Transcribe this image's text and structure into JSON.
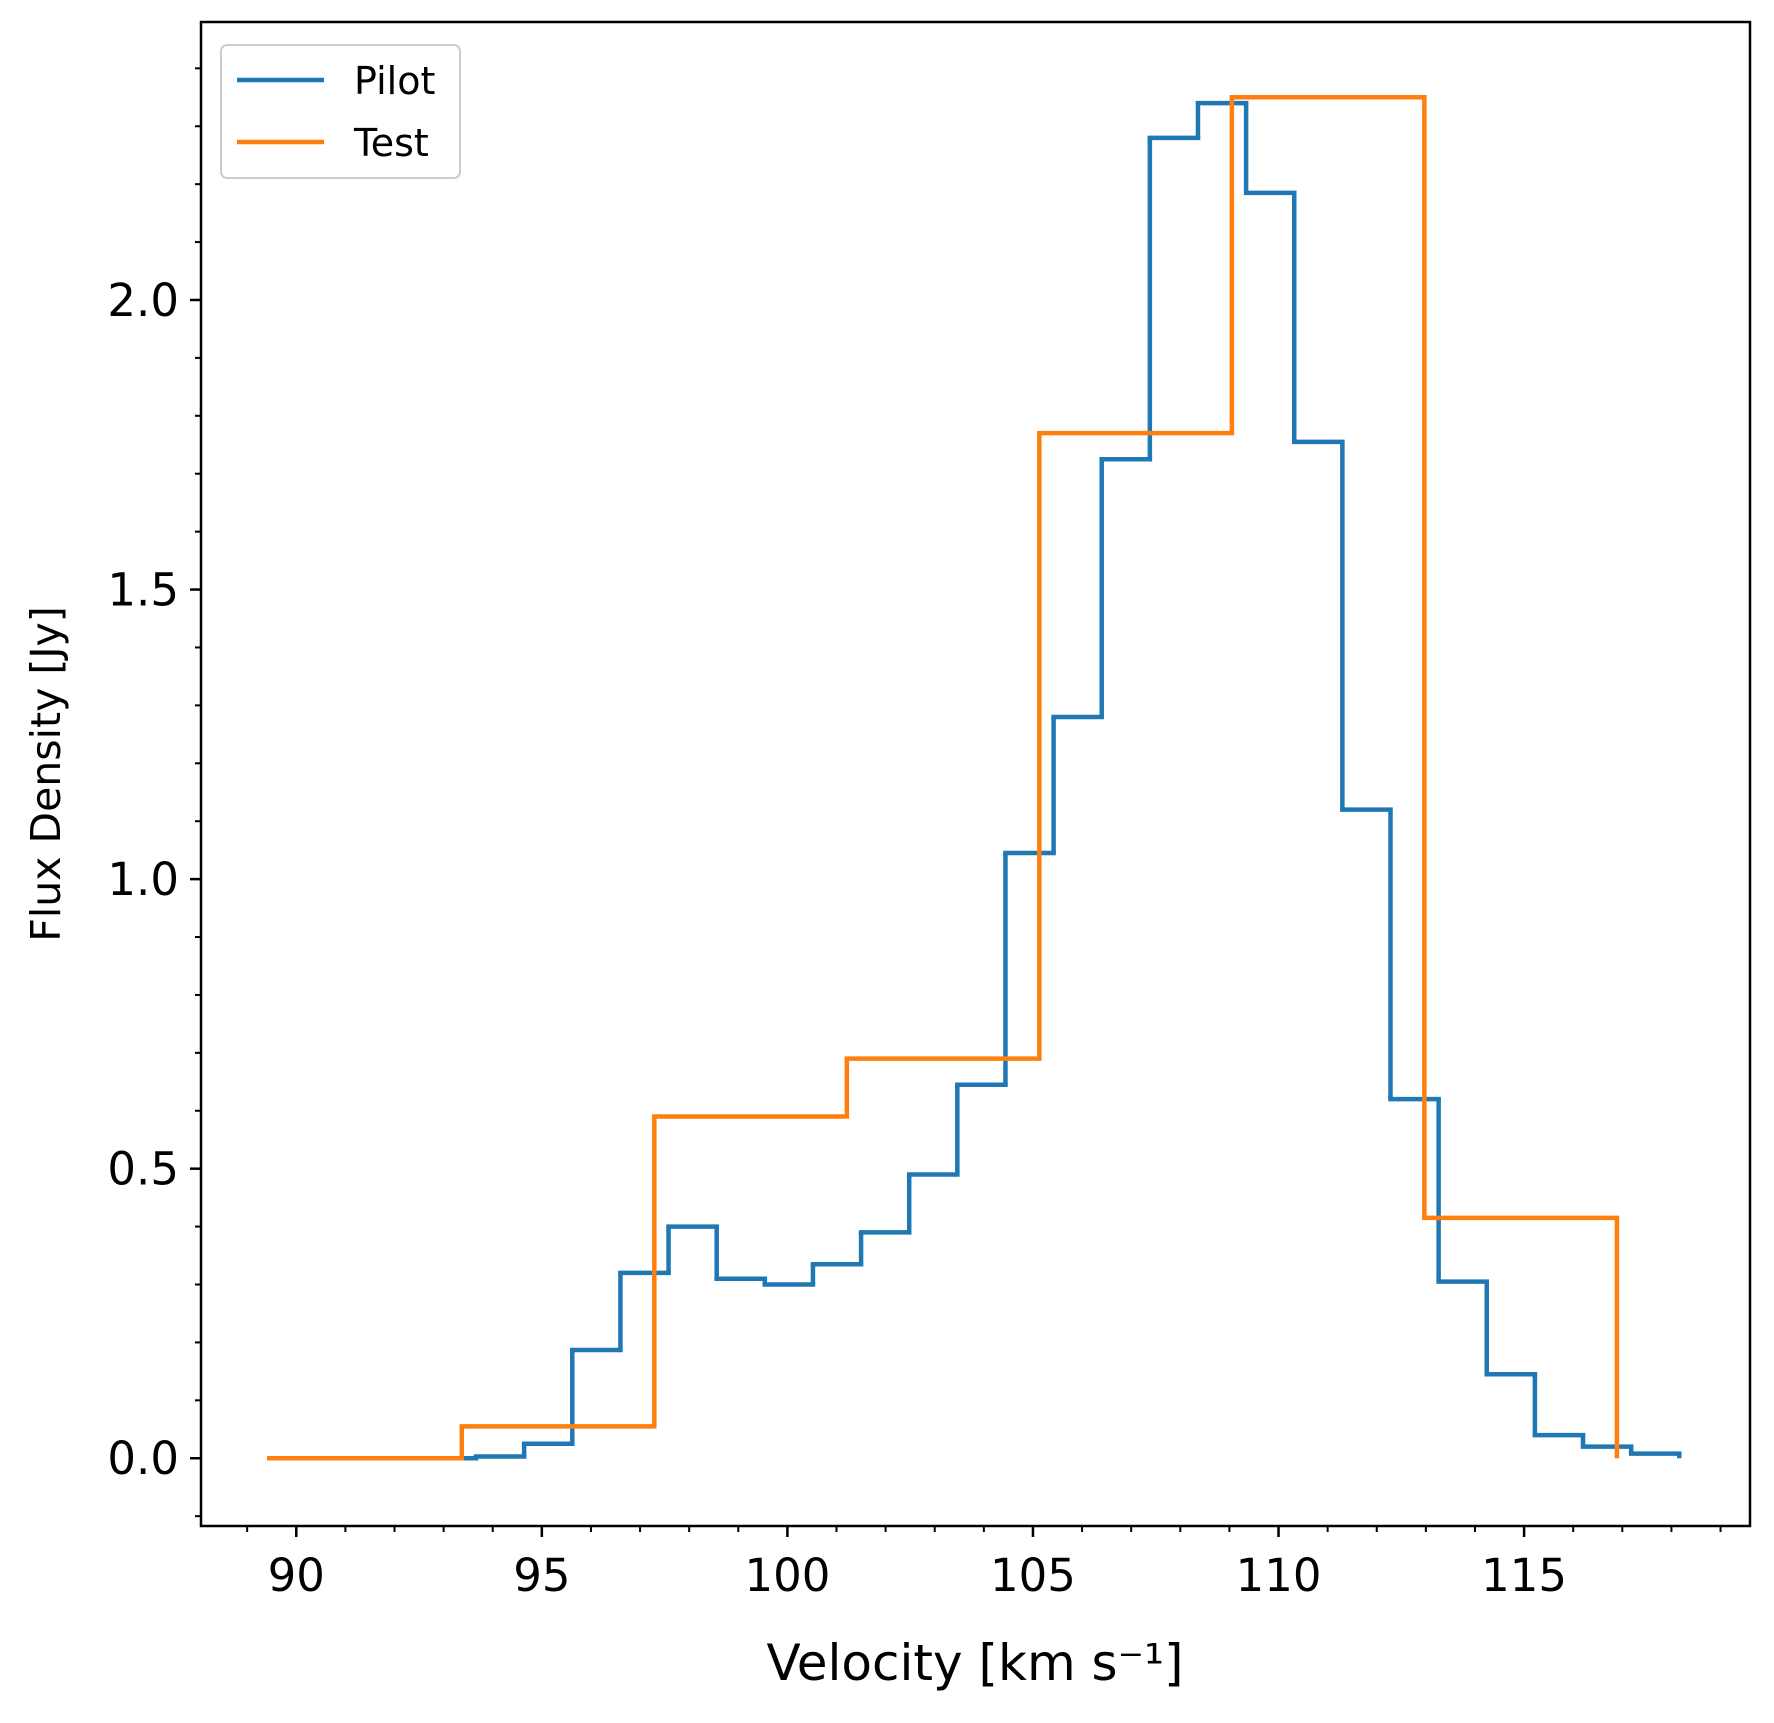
{
  "chart_data": {
    "type": "step",
    "xlabel": "Velocity [km s⁻¹]",
    "ylabel": "Flux Density [Jy]",
    "series": [
      {
        "name": "Pilot",
        "color": "#1f77b4",
        "bins": [
          91.7,
          92.68,
          93.66,
          94.64,
          95.62,
          96.6,
          97.58,
          98.56,
          99.54,
          100.52,
          101.5,
          102.48,
          103.46,
          104.44,
          105.42,
          106.4,
          107.38,
          108.36,
          109.34,
          110.32,
          111.3,
          112.28,
          113.26,
          114.24,
          115.22,
          116.2,
          117.18,
          118.16
        ],
        "values": [
          0,
          0,
          0.003,
          0.025,
          0.187,
          0.32,
          0.4,
          0.31,
          0.3,
          0.335,
          0.39,
          0.49,
          0.645,
          1.045,
          1.28,
          1.725,
          2.28,
          2.34,
          2.185,
          1.755,
          1.12,
          0.62,
          0.305,
          0.145,
          0.04,
          0.02,
          0.008
        ]
      },
      {
        "name": "Test",
        "color": "#ff7f0e",
        "bins": [
          89.45,
          93.37,
          97.29,
          101.21,
          105.13,
          109.05,
          112.97,
          116.89
        ],
        "values": [
          0,
          0.055,
          0.59,
          0.69,
          1.77,
          2.35,
          0.415
        ]
      }
    ],
    "xlim": [
      88.06,
      119.6
    ],
    "ylim": [
      -0.117,
      2.48
    ],
    "xticks": [
      90,
      95,
      100,
      105,
      110,
      115
    ],
    "yticks": [
      {
        "value": 0,
        "label": "0.0"
      },
      {
        "value": 0.5,
        "label": "0.5"
      },
      {
        "value": 1,
        "label": "1.0"
      },
      {
        "value": 1.5,
        "label": "1.5"
      },
      {
        "value": 2,
        "label": "2.0"
      }
    ],
    "minor_ticks": true,
    "legend": "upper left"
  }
}
